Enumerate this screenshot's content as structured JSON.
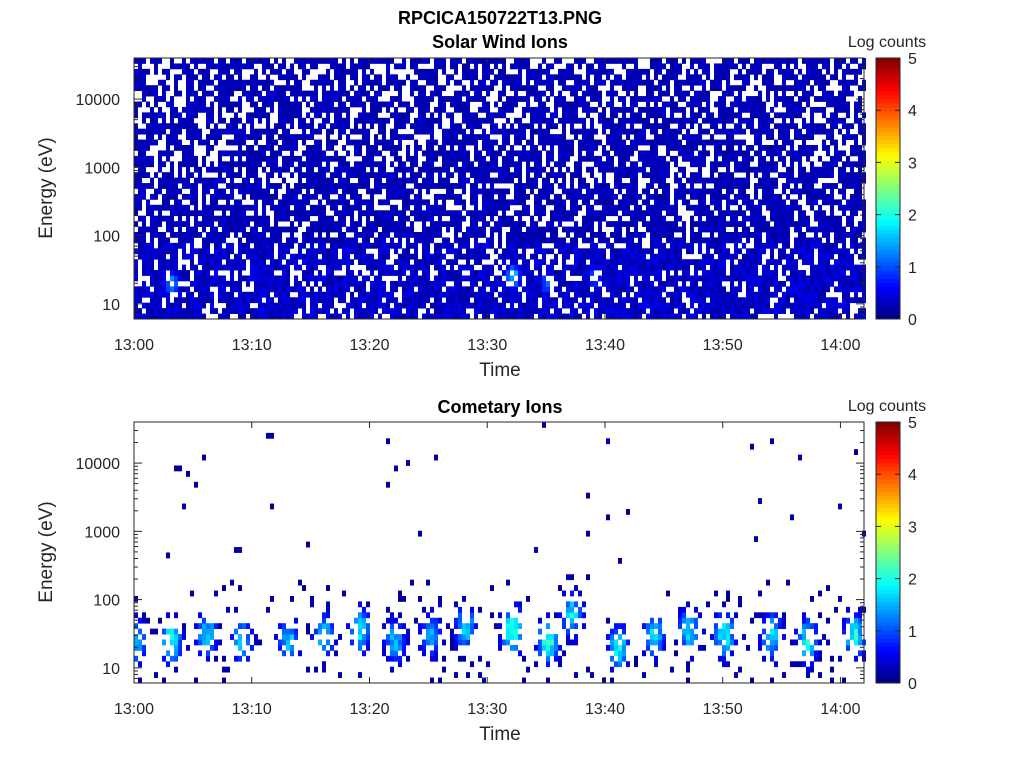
{
  "figure_title": "RPCICA150722T13.PNG",
  "chart_data": [
    {
      "type": "heatmap",
      "title": "Solar Wind Ions",
      "xlabel": "Time",
      "ylabel": "Energy (eV)",
      "x_range": [
        "13:00",
        "14:02"
      ],
      "x_ticks": [
        "13:00",
        "13:10",
        "13:20",
        "13:30",
        "13:40",
        "13:50",
        "14:00"
      ],
      "y_scale": "log",
      "y_range": [
        6,
        40000
      ],
      "y_ticks": [
        "10",
        "100",
        "1000",
        "10000"
      ],
      "colorbar": {
        "label": "Log counts",
        "range": [
          0,
          5
        ],
        "ticks": [
          "0",
          "1",
          "2",
          "3",
          "4",
          "5"
        ],
        "colormap": "jet"
      },
      "features": [
        {
          "description": "Dense low counts (0-1 log counts) across all energies ~7 eV to 30000 eV"
        },
        {
          "time": "13:03",
          "energy_eV": 20,
          "log_counts": 1.6
        },
        {
          "time": "13:32",
          "energy_eV": 25,
          "log_counts": 2.0
        },
        {
          "time": "13:35",
          "energy_eV": 20,
          "log_counts": 1.4
        },
        {
          "time": "13:39",
          "energy_eV": 25,
          "log_counts": 1.3
        }
      ]
    },
    {
      "type": "heatmap",
      "title": "Cometary Ions",
      "xlabel": "Time",
      "ylabel": "Energy (eV)",
      "x_range": [
        "13:00",
        "14:02"
      ],
      "x_ticks": [
        "13:00",
        "13:10",
        "13:20",
        "13:30",
        "13:40",
        "13:50",
        "14:00"
      ],
      "y_scale": "log",
      "y_range": [
        6,
        40000
      ],
      "y_ticks": [
        "10",
        "100",
        "1000",
        "10000"
      ],
      "colorbar": {
        "label": "Log counts",
        "range": [
          0,
          5
        ],
        "ticks": [
          "0",
          "1",
          "2",
          "3",
          "4",
          "5"
        ],
        "colormap": "jet"
      },
      "features": [
        {
          "description": "Recurring ion bursts at ~15-60 eV, peaks up to ~2.7 log counts, sparse points up to ~20000 eV"
        },
        {
          "time": "13:00",
          "energy_eV": 25,
          "log_counts": 1.9
        },
        {
          "time": "13:03",
          "energy_eV": 25,
          "log_counts": 2.3
        },
        {
          "time": "13:06",
          "energy_eV": 30,
          "log_counts": 2.0
        },
        {
          "time": "13:09",
          "energy_eV": 25,
          "log_counts": 1.9
        },
        {
          "time": "13:13",
          "energy_eV": 25,
          "log_counts": 1.9
        },
        {
          "time": "13:16",
          "energy_eV": 30,
          "log_counts": 2.0
        },
        {
          "time": "13:19",
          "energy_eV": 35,
          "log_counts": 2.2
        },
        {
          "time": "13:22",
          "energy_eV": 25,
          "log_counts": 1.8
        },
        {
          "time": "13:25",
          "energy_eV": 30,
          "log_counts": 1.7
        },
        {
          "time": "13:28",
          "energy_eV": 40,
          "log_counts": 2.0
        },
        {
          "time": "13:32",
          "energy_eV": 35,
          "log_counts": 2.7
        },
        {
          "time": "13:35",
          "energy_eV": 25,
          "log_counts": 2.5
        },
        {
          "time": "13:37",
          "energy_eV": 60,
          "log_counts": 2.1
        },
        {
          "time": "13:41",
          "energy_eV": 20,
          "log_counts": 2.2
        },
        {
          "time": "13:44",
          "energy_eV": 30,
          "log_counts": 2.0
        },
        {
          "time": "13:47",
          "energy_eV": 35,
          "log_counts": 2.1
        },
        {
          "time": "13:50",
          "energy_eV": 30,
          "log_counts": 2.2
        },
        {
          "time": "13:54",
          "energy_eV": 30,
          "log_counts": 2.1
        },
        {
          "time": "13:57",
          "energy_eV": 25,
          "log_counts": 2.2
        },
        {
          "time": "14:01",
          "energy_eV": 30,
          "log_counts": 2.3
        }
      ]
    }
  ]
}
